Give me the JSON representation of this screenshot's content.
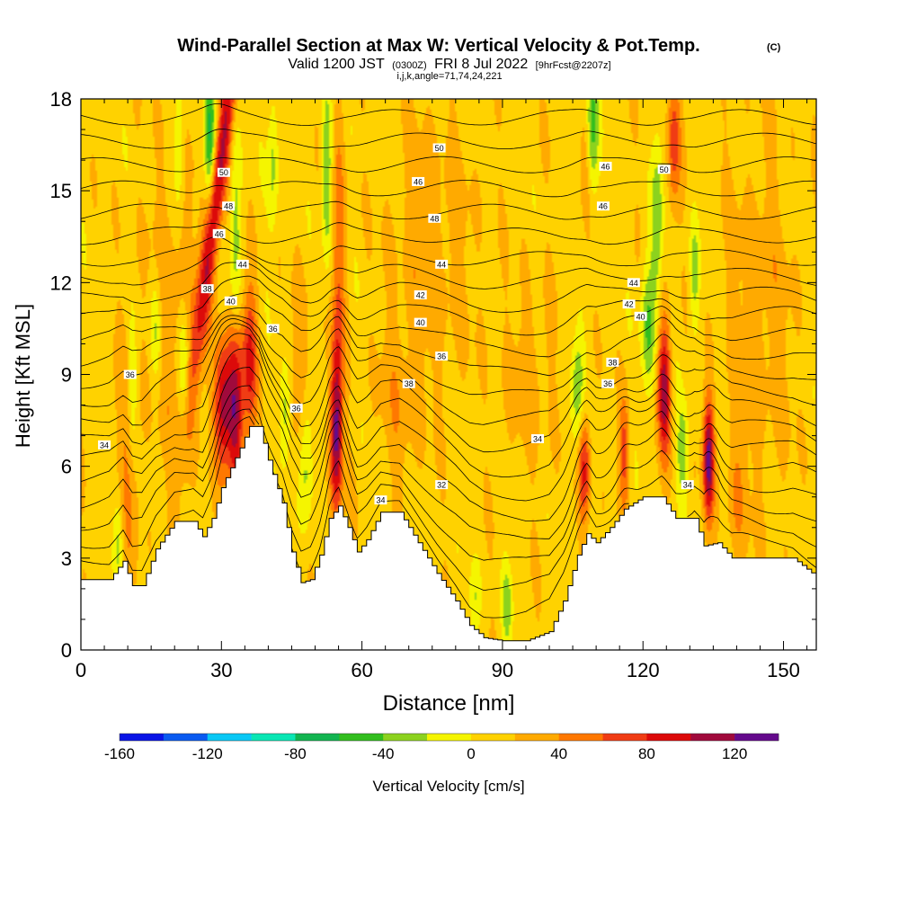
{
  "chart_data": {
    "type": "heatmap",
    "title": "Wind-Parallel Section at Max W: Vertical Velocity & Pot.Temp.",
    "title_mark": "(C)",
    "subtitle_main": "Valid 1200 JST",
    "subtitle_utc": "(0300Z)",
    "subtitle_date": "FRI 8 Jul 2022",
    "subtitle_fcst": "[9hrFcst@2207z]",
    "subtitle_2": "i,j,k,angle=71,74,24,221",
    "xlabel": "Distance [nm]",
    "ylabel": "Height [Kft MSL]",
    "xlim": [
      0,
      157
    ],
    "ylim": [
      0,
      18
    ],
    "x_ticks": [
      0,
      30,
      60,
      90,
      120,
      150
    ],
    "y_ticks": [
      0,
      3,
      6,
      9,
      12,
      15,
      18
    ],
    "colorbar": {
      "label": "Vertical Velocity [cm/s]",
      "tick_labels": [
        -160,
        -120,
        -80,
        -40,
        0,
        40,
        80,
        120
      ],
      "bounds": [
        -160,
        140
      ],
      "step": 20,
      "colors": [
        "#0a14e6",
        "#0a5af0",
        "#0ac8f5",
        "#0ae6b4",
        "#12b450",
        "#32be1e",
        "#8cd21e",
        "#f5f500",
        "#ffd200",
        "#ffaa00",
        "#ff7800",
        "#f03c14",
        "#dc0a0a",
        "#a00a3c",
        "#640a8c"
      ]
    },
    "terrain_kft": [
      [
        0,
        2.3
      ],
      [
        6,
        2.3
      ],
      [
        9,
        2.9
      ],
      [
        11,
        2.1
      ],
      [
        13,
        2.1
      ],
      [
        16,
        3.3
      ],
      [
        20,
        4.2
      ],
      [
        24,
        4.2
      ],
      [
        26,
        3.7
      ],
      [
        28,
        4.3
      ],
      [
        30,
        5.3
      ],
      [
        34,
        6.6
      ],
      [
        36,
        7.3
      ],
      [
        38,
        7.3
      ],
      [
        40,
        6.2
      ],
      [
        43,
        4.8
      ],
      [
        45,
        3.2
      ],
      [
        47,
        2.2
      ],
      [
        49,
        2.3
      ],
      [
        51,
        3.1
      ],
      [
        53,
        4.3
      ],
      [
        55,
        4.7
      ],
      [
        57,
        4.0
      ],
      [
        59,
        3.2
      ],
      [
        61,
        3.6
      ],
      [
        64,
        4.5
      ],
      [
        68,
        4.5
      ],
      [
        72,
        3.5
      ],
      [
        76,
        2.5
      ],
      [
        80,
        1.6
      ],
      [
        83,
        0.8
      ],
      [
        86,
        0.4
      ],
      [
        90,
        0.3
      ],
      [
        95,
        0.3
      ],
      [
        100,
        0.6
      ],
      [
        103,
        1.6
      ],
      [
        106,
        3.1
      ],
      [
        108,
        3.8
      ],
      [
        110,
        3.5
      ],
      [
        113,
        4.0
      ],
      [
        116,
        4.6
      ],
      [
        120,
        5.0
      ],
      [
        124,
        5.0
      ],
      [
        127,
        4.3
      ],
      [
        131,
        4.3
      ],
      [
        133,
        3.4
      ],
      [
        136,
        3.5
      ],
      [
        139,
        3.0
      ],
      [
        142,
        3.0
      ],
      [
        147,
        3.0
      ],
      [
        152,
        3.0
      ],
      [
        157,
        2.4
      ]
    ],
    "updrafts": [
      {
        "x": 29,
        "y": 15,
        "w": 100,
        "sx": 1.3,
        "sy": 4.5,
        "tilt": 0.8
      },
      {
        "x": 30.5,
        "y": 8,
        "w": 100,
        "sx": 1.3,
        "sy": 1.5
      },
      {
        "x": 33,
        "y": 7.8,
        "w": 95,
        "sx": 1.1,
        "sy": 2.0
      },
      {
        "x": 36,
        "y": 9.4,
        "w": 75,
        "sx": 1.1,
        "sy": 1.8
      },
      {
        "x": 54.5,
        "y": 7.1,
        "w": 100,
        "sx": 0.9,
        "sy": 1.9
      },
      {
        "x": 55,
        "y": 12,
        "w": 45,
        "sx": 1.0,
        "sy": 4.0
      },
      {
        "x": 107.5,
        "y": 6.0,
        "w": 75,
        "sx": 0.9,
        "sy": 1.3
      },
      {
        "x": 116,
        "y": 6.5,
        "w": 55,
        "sx": 0.8,
        "sy": 1.3
      },
      {
        "x": 124.5,
        "y": 8.5,
        "w": 100,
        "sx": 1.0,
        "sy": 1.6
      },
      {
        "x": 126.5,
        "y": 16.5,
        "w": 55,
        "sx": 1.0,
        "sy": 1.6
      },
      {
        "x": 134,
        "y": 6.2,
        "w": 115,
        "sx": 0.8,
        "sy": 1.4
      },
      {
        "x": 108,
        "y": 16.0,
        "w": 40,
        "sx": 1.0,
        "sy": 2.0
      },
      {
        "x": 75,
        "y": 13,
        "w": 20,
        "sx": 6,
        "sy": 3
      },
      {
        "x": 20,
        "y": 11,
        "w": 22,
        "sx": 4,
        "sy": 4
      },
      {
        "x": 145,
        "y": 11,
        "w": 20,
        "sx": 5,
        "sy": 4
      },
      {
        "x": 10,
        "y": 6,
        "w": 25,
        "sx": 2,
        "sy": 3
      },
      {
        "x": 47,
        "y": 9,
        "w": 22,
        "sx": 2,
        "sy": 2
      },
      {
        "x": 68,
        "y": 8,
        "w": 20,
        "sx": 3,
        "sy": 2
      },
      {
        "x": 96,
        "y": 9,
        "w": 18,
        "sx": 4,
        "sy": 2
      },
      {
        "x": 140,
        "y": 5,
        "w": 25,
        "sx": 1.5,
        "sy": 1.5
      }
    ],
    "downdrafts": [
      {
        "x": 27.5,
        "y": 16.5,
        "w": -80,
        "sx": 0.9,
        "sy": 1.7
      },
      {
        "x": 33,
        "y": 13.5,
        "w": -45,
        "sx": 0.9,
        "sy": 2.5
      },
      {
        "x": 21,
        "y": 16.5,
        "w": -40,
        "sx": 0.8,
        "sy": 1.6
      },
      {
        "x": 22,
        "y": 9.5,
        "w": -45,
        "sx": 0.8,
        "sy": 1.3
      },
      {
        "x": 16,
        "y": 10.5,
        "w": -40,
        "sx": 0.9,
        "sy": 1.3
      },
      {
        "x": 11,
        "y": 8.5,
        "w": -40,
        "sx": 0.7,
        "sy": 1.4
      },
      {
        "x": 8,
        "y": 3.6,
        "w": -40,
        "sx": 0.8,
        "sy": 1.1
      },
      {
        "x": 48,
        "y": 6.2,
        "w": -50,
        "sx": 1.0,
        "sy": 1.6
      },
      {
        "x": 52.5,
        "y": 15.5,
        "w": -55,
        "sx": 0.8,
        "sy": 2.0
      },
      {
        "x": 41,
        "y": 16,
        "w": -40,
        "sx": 0.8,
        "sy": 1.8
      },
      {
        "x": 43.5,
        "y": 7.8,
        "w": -45,
        "sx": 0.8,
        "sy": 1.2
      },
      {
        "x": 109,
        "y": 17,
        "w": -80,
        "sx": 1.0,
        "sy": 1.8
      },
      {
        "x": 106,
        "y": 8.5,
        "w": -50,
        "sx": 1.0,
        "sy": 1.5
      },
      {
        "x": 121,
        "y": 10.5,
        "w": -55,
        "sx": 1.1,
        "sy": 1.6
      },
      {
        "x": 123,
        "y": 14,
        "w": -50,
        "sx": 0.9,
        "sy": 2.0
      },
      {
        "x": 131,
        "y": 12.2,
        "w": -40,
        "sx": 0.8,
        "sy": 1.4
      },
      {
        "x": 91,
        "y": 1.5,
        "w": -40,
        "sx": 0.8,
        "sy": 1.0
      },
      {
        "x": 128.5,
        "y": 6.6,
        "w": -45,
        "sx": 0.9,
        "sy": 1.1
      },
      {
        "x": 84,
        "y": 1.6,
        "w": -30,
        "sx": 0.8,
        "sy": 0.9
      }
    ],
    "theta_levels": [
      31,
      32,
      33,
      34,
      35,
      36,
      37,
      38,
      39,
      40,
      41,
      42,
      43,
      44,
      45,
      46,
      47,
      48,
      49,
      50,
      51,
      52
    ],
    "theta_labels": [
      {
        "x": 5,
        "y": 6.7,
        "text": "34"
      },
      {
        "x": 10.5,
        "y": 9.0,
        "text": "36"
      },
      {
        "x": 27,
        "y": 11.8,
        "text": "38"
      },
      {
        "x": 32,
        "y": 11.4,
        "text": "40"
      },
      {
        "x": 29.5,
        "y": 13.6,
        "text": "46"
      },
      {
        "x": 31.5,
        "y": 14.5,
        "text": "48"
      },
      {
        "x": 30.5,
        "y": 15.6,
        "text": "50"
      },
      {
        "x": 34.5,
        "y": 12.6,
        "text": "44"
      },
      {
        "x": 41,
        "y": 10.5,
        "text": "36"
      },
      {
        "x": 46,
        "y": 7.9,
        "text": "36"
      },
      {
        "x": 64,
        "y": 4.9,
        "text": "34"
      },
      {
        "x": 76.5,
        "y": 16.4,
        "text": "50"
      },
      {
        "x": 72,
        "y": 15.3,
        "text": "46"
      },
      {
        "x": 75.5,
        "y": 14.1,
        "text": "48"
      },
      {
        "x": 77,
        "y": 12.6,
        "text": "44"
      },
      {
        "x": 72.5,
        "y": 11.6,
        "text": "42"
      },
      {
        "x": 72.5,
        "y": 10.7,
        "text": "40"
      },
      {
        "x": 77,
        "y": 9.6,
        "text": "36"
      },
      {
        "x": 70,
        "y": 8.7,
        "text": "38"
      },
      {
        "x": 77,
        "y": 5.4,
        "text": "32"
      },
      {
        "x": 97.5,
        "y": 6.9,
        "text": "34"
      },
      {
        "x": 112,
        "y": 15.8,
        "text": "46"
      },
      {
        "x": 111.5,
        "y": 14.5,
        "text": "46"
      },
      {
        "x": 124.5,
        "y": 15.7,
        "text": "50"
      },
      {
        "x": 118,
        "y": 12.0,
        "text": "44"
      },
      {
        "x": 117,
        "y": 11.3,
        "text": "42"
      },
      {
        "x": 119.5,
        "y": 10.9,
        "text": "40"
      },
      {
        "x": 113.5,
        "y": 9.4,
        "text": "38"
      },
      {
        "x": 112.5,
        "y": 8.7,
        "text": "36"
      },
      {
        "x": 129.5,
        "y": 5.4,
        "text": "34"
      }
    ]
  }
}
